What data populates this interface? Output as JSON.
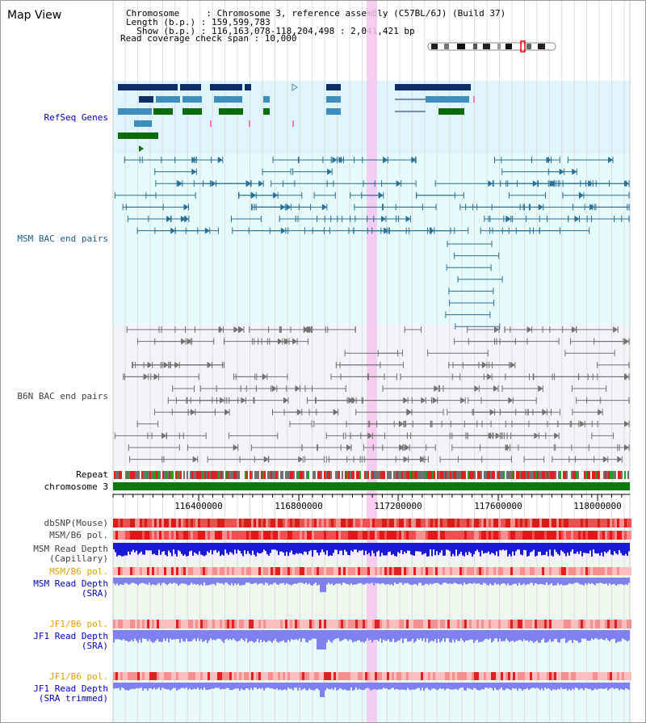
{
  "title": "Map View",
  "header": {
    "line1": "Chromosome     : Chromosome 3, reference assembly (C57BL/6J) (Build 37)",
    "line2": "Length (b.p.) : 159,599,783",
    "line3": "  Show (b.p.) : 116,163,078-118,204,498 : 2,041,421 bp",
    "line4": "Read coverage check span : 10,000"
  },
  "tracks": {
    "refseq": "RefSeq Genes",
    "msm_bac": "MSM BAC end pairs",
    "b6n_bac": "B6N BAC end pairs",
    "repeat": "Repeat",
    "chromosome": "chromosome 3",
    "dbsnp": "dbSNP(Mouse)",
    "msm_pol": "MSM/B6 pol.",
    "msm_depth_cap_1": "MSM Read Depth",
    "msm_depth_cap_2": "(Capillary)",
    "msm_pol_sra": "MSM/B6 pol.",
    "msm_depth_sra_1": "MSM Read Depth",
    "msm_depth_sra_2": "(SRA)",
    "jf1_pol": "JF1/B6 pol.",
    "jf1_depth_1": "JF1 Read Depth",
    "jf1_depth_2": "(SRA)",
    "jf1_pol_trim": "JF1/B6 pol.",
    "jf1_trim_1": "JF1 Read Depth",
    "jf1_trim_2": "(SRA trimmed)"
  },
  "axis": {
    "ticks": [
      "116400000",
      "116800000",
      "117200000",
      "117600000",
      "118000000"
    ]
  },
  "colors": {
    "refseq_bg": "#dff4fb",
    "msm_bg": "#e6fbfb",
    "b6n_bg": "#f2f4f8",
    "highlight": "#f5c6f0",
    "gene_dark": "#0d2e66",
    "gene_mid": "#3d8dbf",
    "gene_green": "#0a6b0a",
    "msm_line": "#2a6f96",
    "b6n_line": "#707070",
    "chrom_green": "#0a7a0a",
    "depth_blue": "#1a1ad6",
    "depth_light": "#8080f0"
  }
}
